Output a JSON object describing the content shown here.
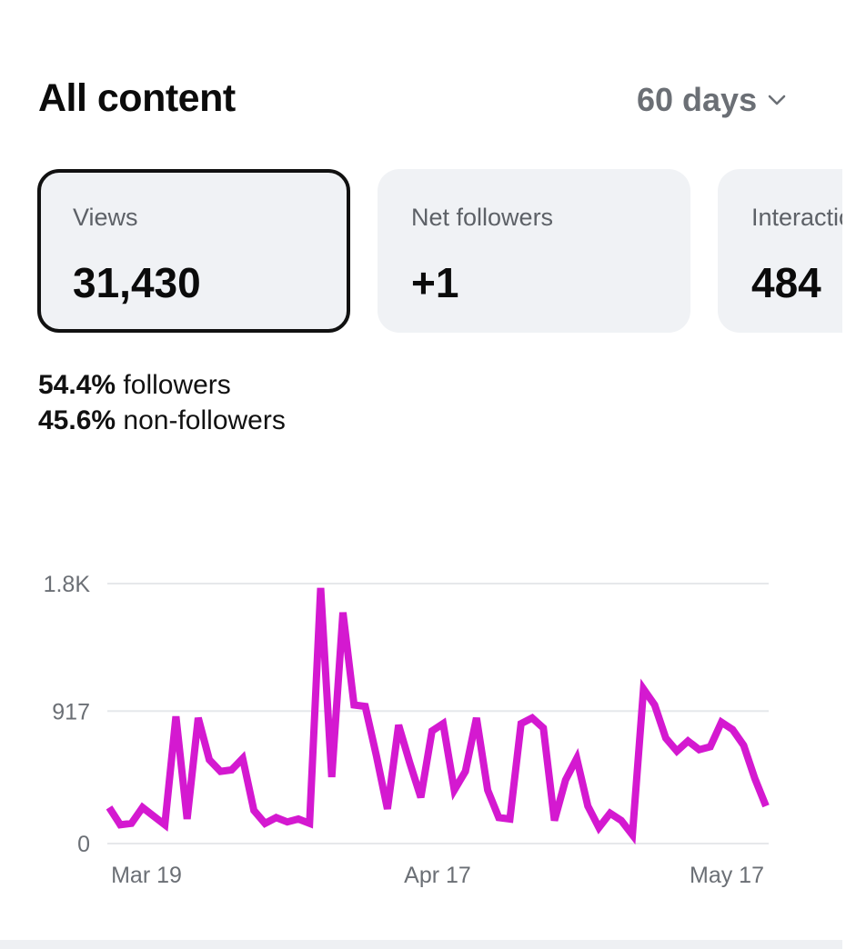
{
  "header": {
    "title": "All content",
    "range_label": "60 days",
    "range_icon": "chevron-down-icon"
  },
  "cards": [
    {
      "label": "Views",
      "value": "31,430",
      "selected": true
    },
    {
      "label": "Net followers",
      "value": "+1",
      "selected": false
    },
    {
      "label": "Interactions",
      "value": "484",
      "selected": false
    }
  ],
  "breakdown": {
    "followers_pct": "54.4%",
    "followers_label": "followers",
    "nonfollowers_pct": "45.6%",
    "nonfollowers_label": "non-followers"
  },
  "colors": {
    "line": "#d419d0",
    "grid": "#e6e8eb",
    "card_bg": "#f0f2f5",
    "muted_text": "#6b6f75"
  },
  "chart_data": {
    "type": "line",
    "series": [
      {
        "values": [
          250,
          130,
          140,
          250,
          190,
          130,
          880,
          170,
          870,
          580,
          500,
          510,
          590,
          230,
          140,
          180,
          150,
          170,
          140,
          1770,
          460,
          1600,
          960,
          950,
          610,
          240,
          820,
          560,
          320,
          780,
          830,
          370,
          500,
          870,
          370,
          180,
          170,
          830,
          870,
          800,
          160,
          440,
          590,
          260,
          110,
          210,
          160,
          60,
          1070,
          960,
          730,
          640,
          710,
          650,
          670,
          840,
          790,
          680,
          450,
          260
        ]
      }
    ],
    "x_tick_labels": [
      "Mar 19",
      "Apr 17",
      "May 17"
    ],
    "y_tick_labels": [
      "1.8K",
      "917",
      "0"
    ],
    "y_ticks": [
      1800,
      917,
      0
    ],
    "ylim": [
      0,
      1800
    ],
    "grid": true
  }
}
